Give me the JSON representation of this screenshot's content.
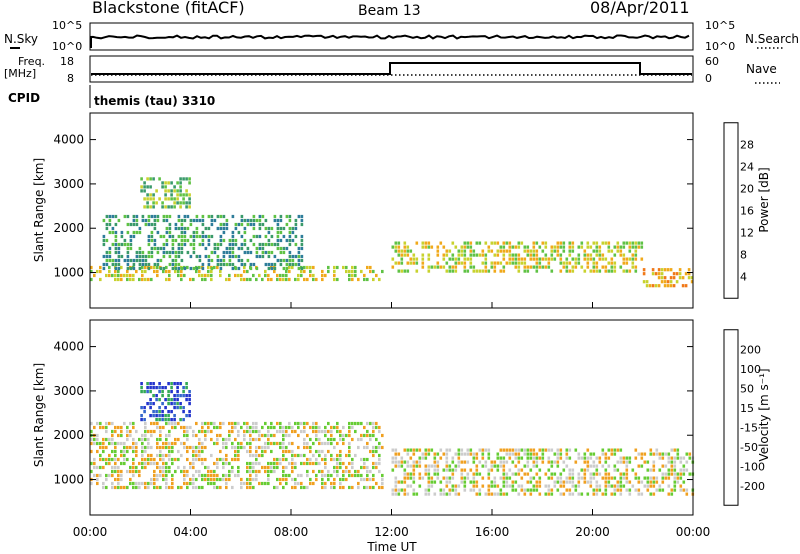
{
  "header": {
    "title": "Blackstone (fitACF)",
    "beam": "Beam 13",
    "date": "08/Apr/2011"
  },
  "top_panels": {
    "nsky_label": "N.Sky",
    "nsky_ticks": [
      "10^5",
      "10^0"
    ],
    "nsearch_label": "N.Search",
    "nsearch_ticks": [
      "10^5",
      "10^0"
    ],
    "freq_label": "Freq.",
    "freq_unit": "[MHz]",
    "freq_ticks": [
      "18",
      "8"
    ],
    "nave_label": "Nave",
    "nave_ticks": [
      "60",
      "0"
    ],
    "cpid_label": "CPID",
    "cpid_value": "themis (tau) 3310"
  },
  "chart_data": [
    {
      "type": "heatmap",
      "panel": "power",
      "ylabel": "Slant Range [km]",
      "yticks": [
        1000,
        2000,
        3000,
        4000
      ],
      "ylim": [
        200,
        4600
      ],
      "xlim": [
        0,
        24
      ],
      "colorbar_label": "Power [dB]",
      "colorbar_ticks": [
        "28",
        "24",
        "20",
        "16",
        "12",
        "8",
        "4"
      ],
      "colorscale": [
        "#0022ff",
        "#1f5fb4",
        "#2e7d9a",
        "#3a9a6a",
        "#5fc244",
        "#c8d22e",
        "#f0a91a",
        "#f07818",
        "#ee4512",
        "#ff0000"
      ],
      "regions": [
        {
          "t0": 0.0,
          "t1": 11.7,
          "r0": 800,
          "r1": 1150,
          "power": 18
        },
        {
          "t0": 0.5,
          "t1": 8.5,
          "r0": 1050,
          "r1": 2300,
          "power": 10
        },
        {
          "t0": 2.0,
          "t1": 4.0,
          "r0": 2500,
          "r1": 3150,
          "power": 14
        },
        {
          "t0": 12.0,
          "t1": 22.0,
          "r0": 1000,
          "r1": 1700,
          "power": 16
        },
        {
          "t0": 22.0,
          "t1": 24.0,
          "r0": 700,
          "r1": 1100,
          "power": 20
        }
      ]
    },
    {
      "type": "heatmap",
      "panel": "velocity",
      "ylabel": "Slant Range [km]",
      "yticks": [
        1000,
        2000,
        3000,
        4000
      ],
      "ylim": [
        200,
        4600
      ],
      "xlim": [
        0,
        24
      ],
      "xticks": [
        "00:00",
        "04:00",
        "08:00",
        "12:00",
        "16:00",
        "20:00",
        "00:00"
      ],
      "xlabel": "Time UT",
      "colorbar_label": "Velocity [m s⁻¹]",
      "colorbar_ticks": [
        "200",
        "100",
        "50",
        "15",
        "-15",
        "-50",
        "-100",
        "-200"
      ],
      "colorscale": [
        "#2233cc",
        "#3366cc",
        "#33aa55",
        "#66cc33",
        "#cccccc",
        "#f0a020",
        "#f07010",
        "#e02010"
      ],
      "regions": [
        {
          "t0": 0.0,
          "t1": 11.7,
          "r0": 800,
          "r1": 2300,
          "velocity": 0
        },
        {
          "t0": 12.0,
          "t1": 24.0,
          "r0": 700,
          "r1": 1700,
          "velocity": 0
        },
        {
          "t0": 2.0,
          "t1": 4.0,
          "r0": 2300,
          "r1": 3200,
          "velocity": 100
        }
      ]
    }
  ]
}
